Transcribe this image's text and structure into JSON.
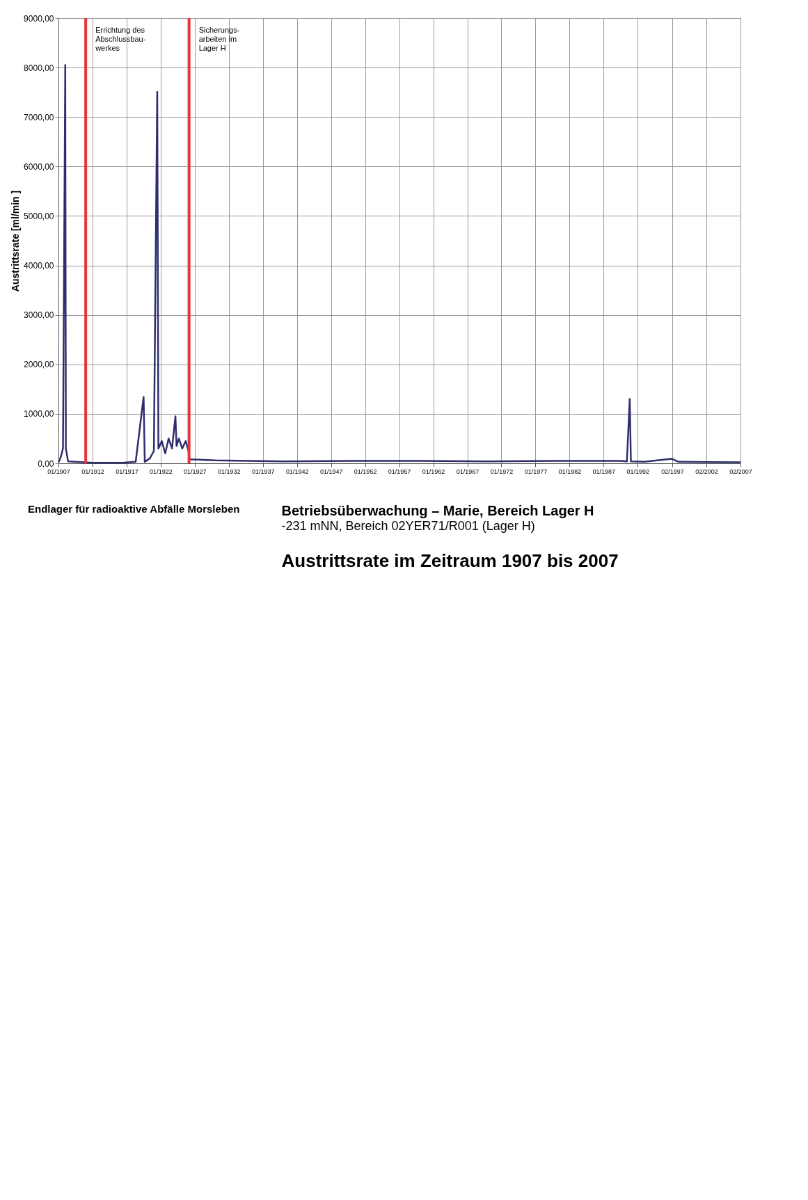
{
  "chart_data": {
    "type": "line",
    "title": "Betriebsüberwachung – Marie, Bereich Lager H",
    "subtitle": "-231 mNN, Bereich 02YER71/R001 (Lager H)",
    "ylabel": "Austrittsrate [ml/min ]",
    "annotations": [
      "Austrittsrate im Zeitraum 1907 bis 2007",
      "Endlager für radioaktive Abfälle Morsleben"
    ],
    "x": [
      "1907-01",
      "1907-05",
      "1907-09",
      "1908-01",
      "1908-02",
      "1908-06",
      "1912-01",
      "1916-06",
      "1918-05",
      "1919-07",
      "1919-09",
      "1920-06",
      "1921-01",
      "1921-07",
      "1921-09",
      "1922-03",
      "1922-09",
      "1923-03",
      "1923-09",
      "1924-03",
      "1924-05",
      "1924-09",
      "1925-03",
      "1925-09",
      "1926-02",
      "1926-04",
      "1930-01",
      "1940-01",
      "1950-01",
      "1960-01",
      "1970-01",
      "1980-01",
      "1989-06",
      "1990-06",
      "1990-11",
      "1991-01",
      "1993-01",
      "1997-01",
      "1998-01",
      "2007-02"
    ],
    "series": [
      {
        "color": "#2e2e6e",
        "values": [
          20,
          120,
          300,
          8050,
          300,
          40,
          10,
          10,
          30,
          1340,
          30,
          100,
          250,
          7510,
          300,
          450,
          200,
          500,
          300,
          950,
          350,
          500,
          300,
          450,
          250,
          80,
          60,
          40,
          50,
          50,
          40,
          50,
          50,
          40,
          1300,
          40,
          30,
          90,
          30,
          20
        ]
      }
    ],
    "xlim": [
      "1907-01",
      "2007-02"
    ],
    "xticks": [
      {
        "value": "1907-01",
        "label": "01/1907"
      },
      {
        "value": "1912-01",
        "label": "01/1912"
      },
      {
        "value": "1917-01",
        "label": "01/1917"
      },
      {
        "value": "1922-01",
        "label": "01/1922"
      },
      {
        "value": "1927-01",
        "label": "01/1927"
      },
      {
        "value": "1932-01",
        "label": "01/1932"
      },
      {
        "value": "1937-01",
        "label": "01/1937"
      },
      {
        "value": "1942-01",
        "label": "01/1942"
      },
      {
        "value": "1947-01",
        "label": "01/1947"
      },
      {
        "value": "1952-01",
        "label": "01/1952"
      },
      {
        "value": "1957-01",
        "label": "01/1957"
      },
      {
        "value": "1962-01",
        "label": "01/1962"
      },
      {
        "value": "1967-01",
        "label": "01/1967"
      },
      {
        "value": "1972-01",
        "label": "01/1972"
      },
      {
        "value": "1977-01",
        "label": "01/1977"
      },
      {
        "value": "1982-01",
        "label": "01/1982"
      },
      {
        "value": "1987-01",
        "label": "01/1987"
      },
      {
        "value": "1992-01",
        "label": "01/1992"
      },
      {
        "value": "1997-02",
        "label": "02/1997"
      },
      {
        "value": "2002-02",
        "label": "02/2002"
      },
      {
        "value": "2007-02",
        "label": "02/2007"
      }
    ],
    "ylim": [
      0,
      9000
    ],
    "yticks": [
      {
        "value": 0,
        "label": "0,00"
      },
      {
        "value": 1000,
        "label": "1000,00"
      },
      {
        "value": 2000,
        "label": "2000,00"
      },
      {
        "value": 3000,
        "label": "3000,00"
      },
      {
        "value": 4000,
        "label": "4000,00"
      },
      {
        "value": 5000,
        "label": "5000,00"
      },
      {
        "value": 6000,
        "label": "6000,00"
      },
      {
        "value": 7000,
        "label": "7000,00"
      },
      {
        "value": 8000,
        "label": "8000,00"
      },
      {
        "value": 9000,
        "label": "9000,00"
      }
    ],
    "ref_lines": [
      {
        "axis": "x",
        "value": "1911-01",
        "label": "Errichtung des Abschlussbau- werkes",
        "color": "#e8333a"
      },
      {
        "axis": "x",
        "value": "1926-03",
        "label": "Sicherungs- arbeiten im Lager H",
        "color": "#e8333a"
      }
    ],
    "grid": true,
    "marker": "none",
    "line_style": "solid"
  }
}
